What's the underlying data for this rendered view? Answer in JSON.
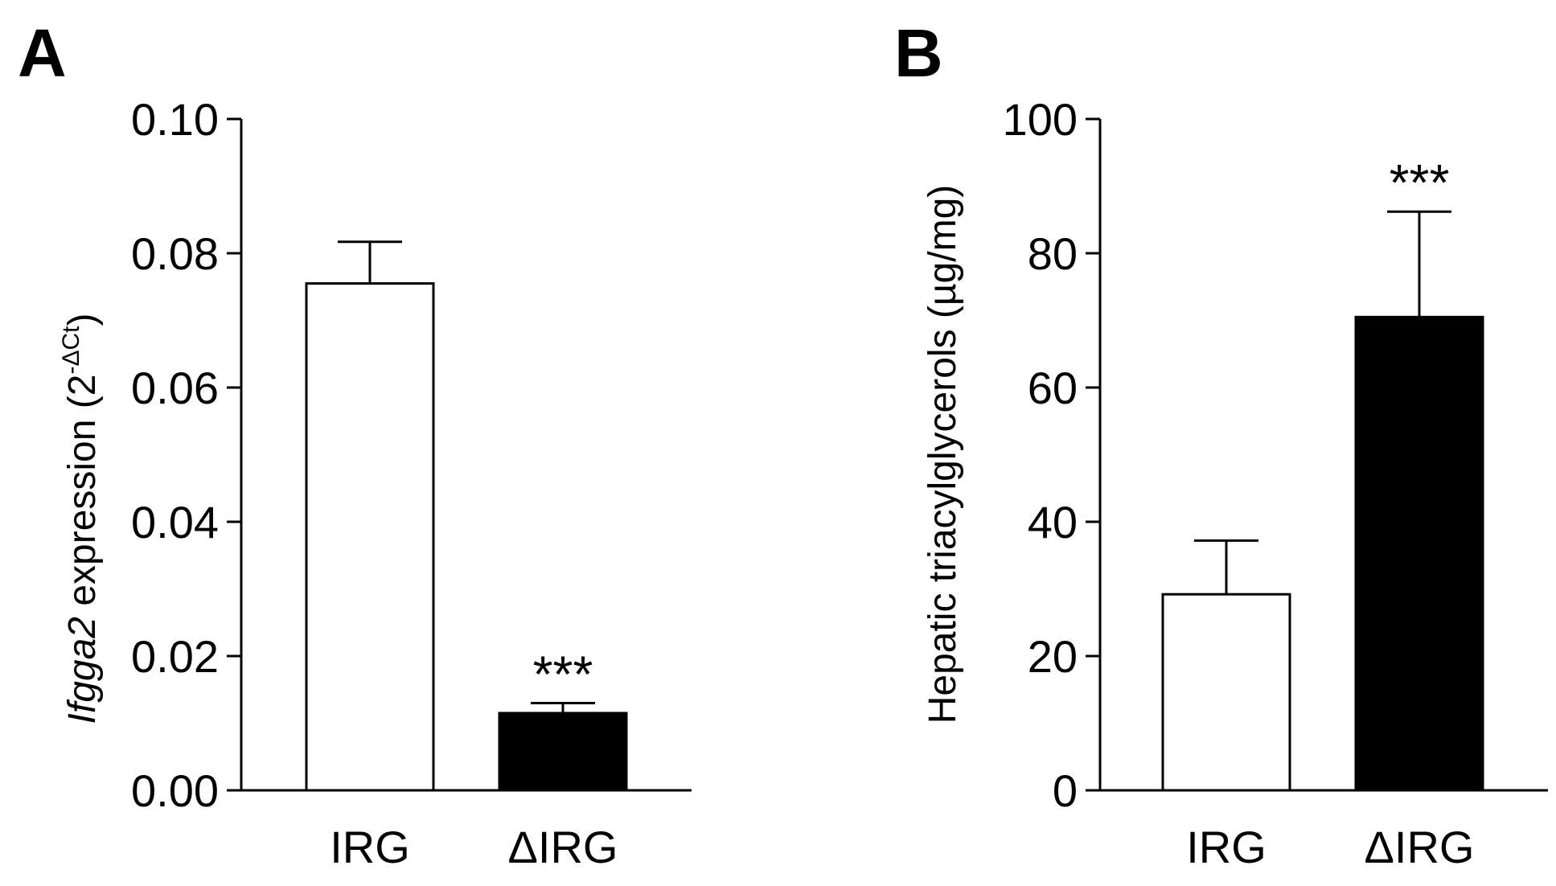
{
  "chart_data": [
    {
      "type": "bar",
      "panel_label": "A",
      "categories": [
        "IRG",
        "ΔIRG"
      ],
      "values": [
        0.0755,
        0.0115
      ],
      "errors": [
        0.0062,
        0.0015
      ],
      "bar_colors": [
        "#ffffff",
        "#000000"
      ],
      "significance": [
        "",
        "***"
      ],
      "ylabel_italic": "Ifgga2",
      "ylabel_rest": " expression (2",
      "ylabel_sup": "-ΔCt",
      "ylabel_close": ")",
      "ylim": [
        0,
        0.1
      ],
      "yticks": [
        0.0,
        0.02,
        0.04,
        0.06,
        0.08,
        0.1
      ],
      "ytick_labels": [
        "0.00",
        "0.02",
        "0.04",
        "0.06",
        "0.08",
        "0.10"
      ],
      "grid": false,
      "legend": "none"
    },
    {
      "type": "bar",
      "panel_label": "B",
      "categories": [
        "IRG",
        "ΔIRG"
      ],
      "values": [
        29.2,
        70.5
      ],
      "errors": [
        8.0,
        15.7
      ],
      "bar_colors": [
        "#ffffff",
        "#000000"
      ],
      "significance": [
        "",
        "***"
      ],
      "ylabel": "Hepatic triacylglycerols (µg/mg)",
      "ylim": [
        0,
        100
      ],
      "yticks": [
        0,
        20,
        40,
        60,
        80,
        100
      ],
      "ytick_labels": [
        "0",
        "20",
        "40",
        "60",
        "80",
        "100"
      ],
      "grid": false,
      "legend": "none"
    }
  ]
}
